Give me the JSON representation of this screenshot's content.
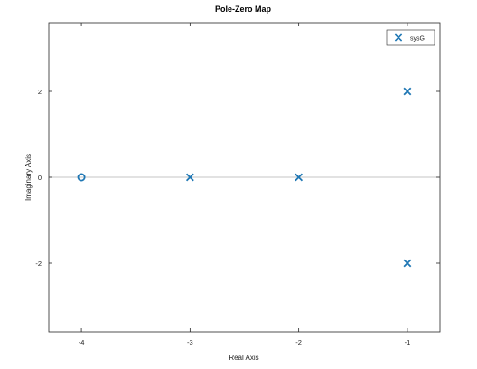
{
  "chart_data": {
    "type": "scatter",
    "title": "Pole-Zero Map",
    "xlabel": "Real Axis",
    "ylabel": "Imaginary Axis",
    "xlim": [
      -4.3,
      -0.7
    ],
    "ylim": [
      -3.6,
      3.6
    ],
    "xticks": [
      -4,
      -3,
      -2,
      -1
    ],
    "xtick_labels": [
      "-4",
      "-3",
      "-2",
      "-1"
    ],
    "yticks": [
      2,
      0,
      -2
    ],
    "ytick_labels": [
      "2",
      "0",
      "-2"
    ],
    "grid": false,
    "zero_line": true,
    "legend": {
      "position": "top-right",
      "entries": [
        {
          "label": "sysG",
          "marker": "x"
        }
      ]
    },
    "series": [
      {
        "name": "sysG",
        "color": "#1f77b4",
        "poles": [
          {
            "re": -3,
            "im": 0
          },
          {
            "re": -2,
            "im": 0
          },
          {
            "re": -1,
            "im": 2
          },
          {
            "re": -1,
            "im": -2
          }
        ],
        "zeros": [
          {
            "re": -4,
            "im": 0
          }
        ]
      }
    ]
  }
}
